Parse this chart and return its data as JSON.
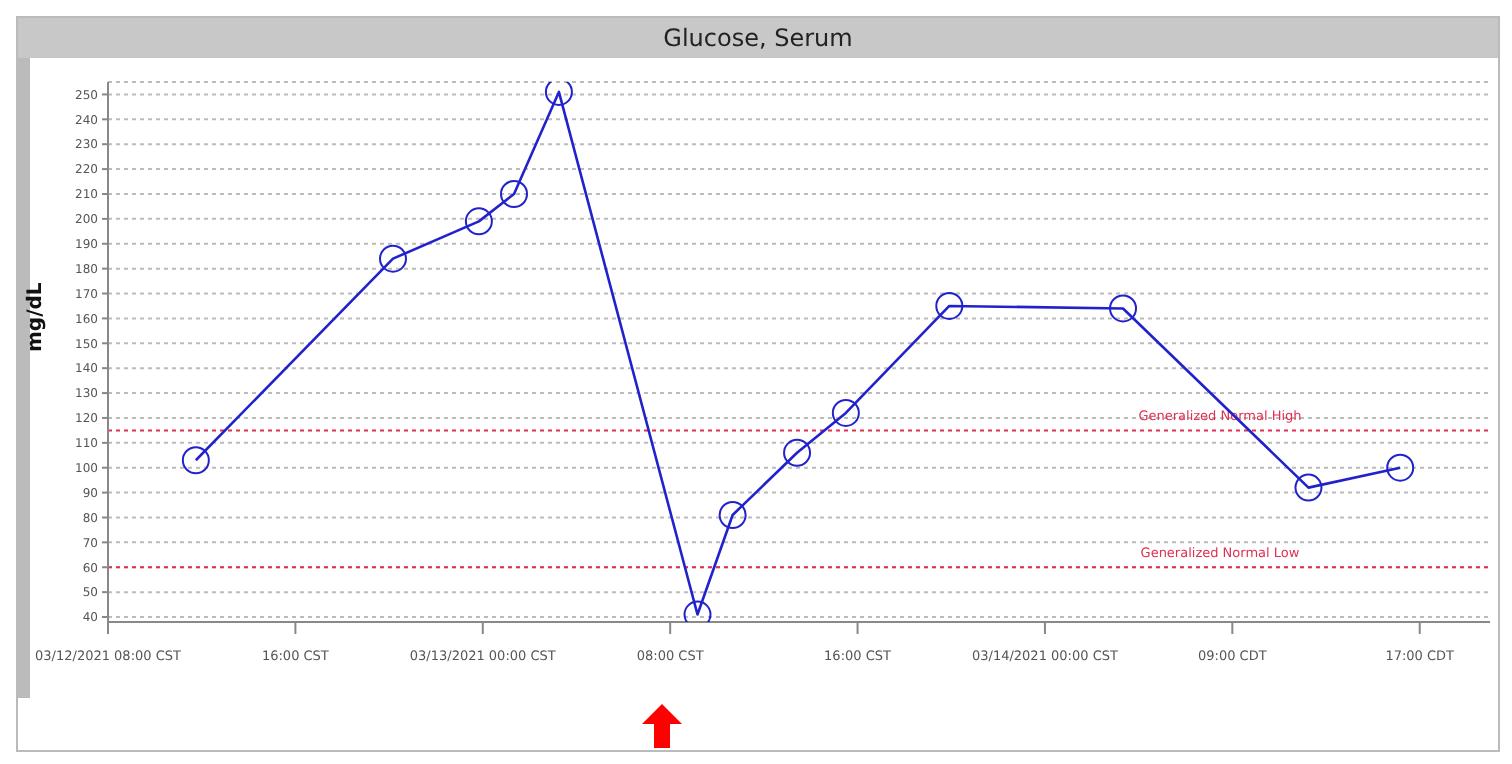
{
  "chart_data": {
    "type": "line",
    "title": "Glucose, Serum",
    "ylabel": "mg/dL",
    "x": [
      "2021-03-12T11:45",
      "2021-03-12T20:10",
      "2021-03-12T23:50",
      "2021-03-13T01:20",
      "2021-03-13T03:15",
      "2021-03-13T09:10",
      "2021-03-13T10:40",
      "2021-03-13T13:25",
      "2021-03-13T15:30",
      "2021-03-13T19:55",
      "2021-03-14T03:20",
      "2021-03-14T11:15",
      "2021-03-14T15:10"
    ],
    "series": [
      {
        "color": "#2222cc",
        "values": [
          103,
          184,
          199,
          210,
          251,
          41,
          81,
          106,
          122,
          165,
          164,
          92,
          100
        ]
      }
    ],
    "xlim": [
      "2021-03-12T08:00",
      "2021-03-14T19:00"
    ],
    "xticks": [
      {
        "value": "2021-03-12T08:00",
        "label": "03/12/2021 08:00 CST"
      },
      {
        "value": "2021-03-12T16:00",
        "label": "16:00 CST"
      },
      {
        "value": "2021-03-13T00:00",
        "label": "03/13/2021 00:00 CST"
      },
      {
        "value": "2021-03-13T08:00",
        "label": "08:00 CST"
      },
      {
        "value": "2021-03-13T16:00",
        "label": "16:00 CST"
      },
      {
        "value": "2021-03-14T00:00",
        "label": "03/14/2021 00:00 CST"
      },
      {
        "value": "2021-03-14T08:00",
        "label": "09:00 CDT"
      },
      {
        "value": "2021-03-14T16:00",
        "label": "17:00 CDT"
      }
    ],
    "ylim": [
      38,
      255
    ],
    "yticks": [
      40,
      50,
      60,
      70,
      80,
      90,
      100,
      110,
      120,
      130,
      140,
      150,
      160,
      170,
      180,
      190,
      200,
      210,
      220,
      230,
      240,
      250
    ],
    "ref_lines": [
      {
        "axis": "y",
        "value": 115,
        "label": "Generalized Normal High",
        "color": "#e03050",
        "line_style": "dotted"
      },
      {
        "axis": "y",
        "value": 60,
        "label": "Generalized Normal Low",
        "color": "#e03050",
        "line_style": "dotted"
      }
    ],
    "grid": "y",
    "marker": "circle",
    "line_style": "solid"
  }
}
